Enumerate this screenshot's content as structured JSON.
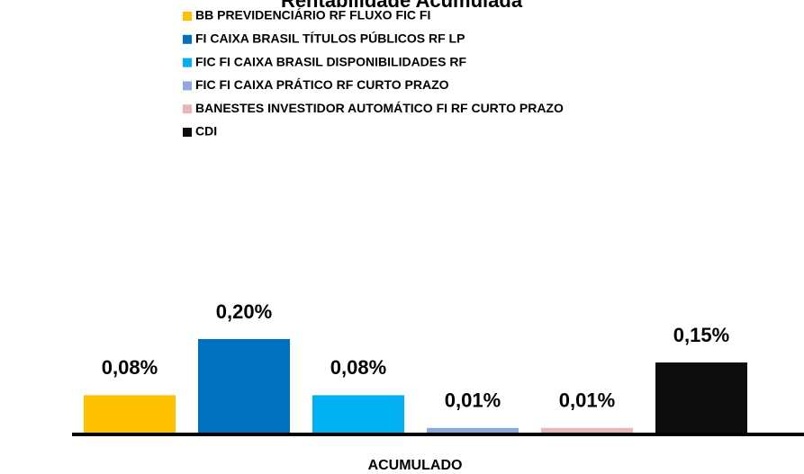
{
  "chart_data": {
    "type": "bar",
    "title": "Rentabilidade Acumulada",
    "categories": [
      "ACUMULADO"
    ],
    "series": [
      {
        "name": "BB PREVIDENCIÁRIO RF FLUXO FIC FI",
        "color": "#FFC000",
        "values": [
          0.08
        ],
        "value_labels": [
          "0,08%"
        ]
      },
      {
        "name": "FI CAIXA BRASIL TÍTULOS PÚBLICOS RF LP",
        "color": "#0070C0",
        "values": [
          0.2
        ],
        "value_labels": [
          "0,20%"
        ]
      },
      {
        "name": "FIC FI CAIXA BRASIL DISPONIBILIDADES RF",
        "color": "#00B0F0",
        "values": [
          0.08
        ],
        "value_labels": [
          "0,08%"
        ]
      },
      {
        "name": "FIC FI CAIXA PRÁTICO RF CURTO PRAZO",
        "color": "#8EA9DB",
        "values": [
          0.01
        ],
        "value_labels": [
          "0,01%"
        ]
      },
      {
        "name": "BANESTES INVESTIDOR AUTOMÁTICO FI RF CURTO PRAZO",
        "color": "#E6B8B7",
        "values": [
          0.01
        ],
        "value_labels": [
          "0,01%"
        ]
      },
      {
        "name": "CDI",
        "color": "#0D0D0D",
        "values": [
          0.15
        ],
        "value_labels": [
          "0,15%"
        ]
      }
    ]
  }
}
